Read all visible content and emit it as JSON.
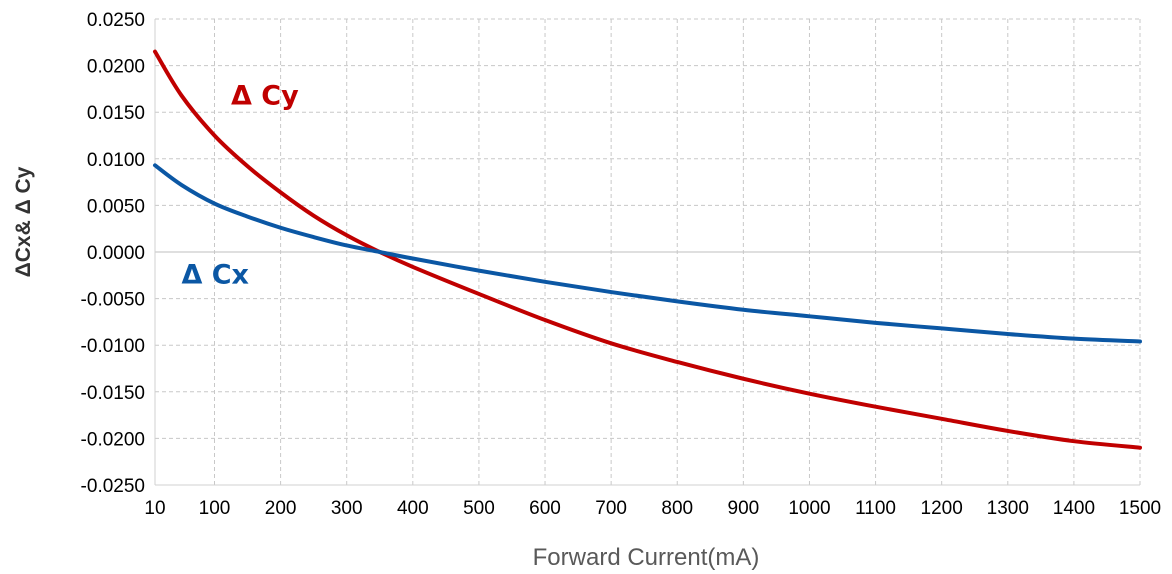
{
  "chart_data": {
    "type": "line",
    "title": "",
    "xlabel": "Forward Current(mA)",
    "ylabel": "ΔCx& Δ Cy",
    "xlim": [
      10,
      1500
    ],
    "ylim": [
      -0.025,
      0.025
    ],
    "x_ticks": [
      10,
      100,
      200,
      300,
      400,
      500,
      600,
      700,
      800,
      900,
      1000,
      1100,
      1200,
      1300,
      1400,
      1500
    ],
    "x_tick_labels": [
      "10",
      "100",
      "200",
      "300",
      "400",
      "500",
      "600",
      "700",
      "800",
      "900",
      "1000",
      "1100",
      "1200",
      "1300",
      "1400",
      "1500"
    ],
    "y_ticks": [
      0.025,
      0.02,
      0.015,
      0.01,
      0.005,
      0.0,
      -0.005,
      -0.01,
      -0.015,
      -0.02,
      -0.025
    ],
    "y_tick_labels": [
      "0.0250",
      "0.0200",
      "0.0150",
      "0.0100",
      "0.0050",
      "0.0000",
      "-0.0050",
      "-0.0100",
      "-0.0150",
      "-0.0200",
      "-0.0250"
    ],
    "grid": true,
    "series": [
      {
        "name": "Δ Cy",
        "color": "#c00000",
        "label_anchor": [
          125,
          0.0158
        ],
        "x": [
          10,
          50,
          100,
          150,
          200,
          250,
          300,
          350,
          400,
          500,
          600,
          700,
          800,
          900,
          1000,
          1100,
          1200,
          1300,
          1400,
          1500
        ],
        "values": [
          0.0215,
          0.0168,
          0.0125,
          0.0092,
          0.0064,
          0.0039,
          0.0018,
          0.0,
          -0.0016,
          -0.0045,
          -0.0073,
          -0.0098,
          -0.0118,
          -0.0136,
          -0.0152,
          -0.0166,
          -0.0179,
          -0.0192,
          -0.0203,
          -0.021
        ]
      },
      {
        "name": "Δ Cx",
        "color": "#0b57a4",
        "label_anchor": [
          50,
          -0.0034
        ],
        "x": [
          10,
          50,
          100,
          150,
          200,
          250,
          300,
          350,
          400,
          500,
          600,
          700,
          800,
          900,
          1000,
          1100,
          1200,
          1300,
          1400,
          1500
        ],
        "values": [
          0.0093,
          0.0072,
          0.0052,
          0.0038,
          0.0026,
          0.0016,
          0.0007,
          0.0,
          -0.0007,
          -0.002,
          -0.0032,
          -0.0043,
          -0.0053,
          -0.0062,
          -0.0069,
          -0.0076,
          -0.0082,
          -0.0088,
          -0.0093,
          -0.0096
        ]
      }
    ]
  }
}
